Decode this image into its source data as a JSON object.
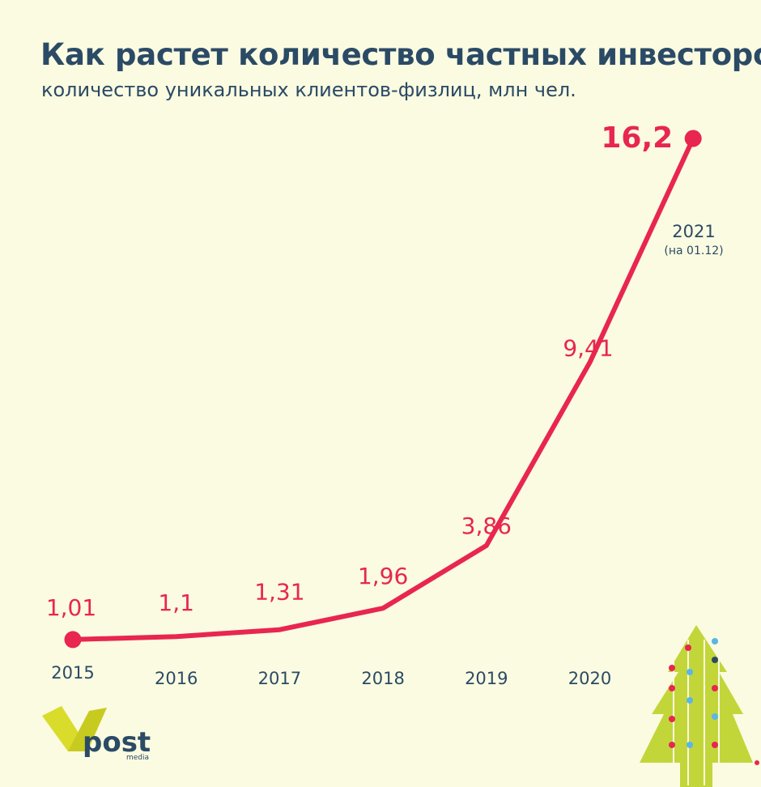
{
  "header": {
    "title": "Как растет количество частных инвесторов",
    "subtitle": "количество уникальных клиентов-физлиц, млн чел."
  },
  "chart_data": {
    "type": "line",
    "title": "Как растет количество частных инвесторов",
    "subtitle": "количество уникальных клиентов-физлиц, млн чел.",
    "categories": [
      "2015",
      "2016",
      "2017",
      "2018",
      "2019",
      "2020",
      "2021"
    ],
    "category_notes": [
      "",
      "",
      "",
      "",
      "",
      "",
      "(на 01.12)"
    ],
    "values": [
      1.01,
      1.1,
      1.31,
      1.96,
      3.86,
      9.41,
      16.2
    ],
    "value_labels": [
      "1,01",
      "1,1",
      "1,31",
      "1,96",
      "3,86",
      "9,41",
      "16,2"
    ],
    "ylim": [
      0,
      17
    ],
    "grid": false,
    "colors": {
      "line": "#e8264f",
      "axis_text": "#2b4a66"
    }
  },
  "branding": {
    "logo_word": "post",
    "logo_sub": "media"
  }
}
